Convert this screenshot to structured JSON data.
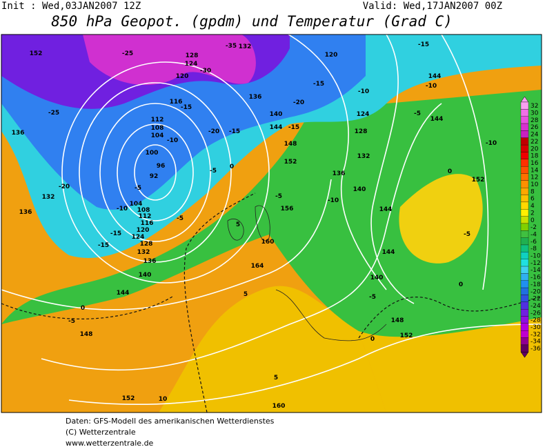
{
  "header": {
    "init": "Init : Wed,03JAN2007 12Z",
    "valid": "Valid: Wed,17JAN2007 00Z",
    "title": "850 hPa Geopot. (gpdm) und Temperatur (Grad C)"
  },
  "map": {
    "contour_labels": [
      "152",
      "-25",
      "128",
      "-30",
      "-35",
      "132",
      "120",
      "-15",
      "144",
      "-10",
      "124",
      "120",
      "-25",
      "136",
      "116",
      "-15",
      "112",
      "108",
      "104",
      "-10",
      "-20",
      "-15",
      "100",
      "96",
      "92",
      "-5",
      "-5",
      "0",
      "-20",
      "132",
      "136",
      "-10",
      "104",
      "108",
      "112",
      "116",
      "120",
      "124",
      "128",
      "132",
      "136",
      "-15",
      "-15",
      "-5",
      "5",
      "160",
      "164",
      "140",
      "144",
      "0",
      "-5",
      "148",
      "152",
      "10",
      "5",
      "160",
      "5",
      "136",
      "140",
      "-20",
      "144",
      "-15",
      "148",
      "152",
      "-15",
      "-10",
      "124",
      "128",
      "132",
      "136",
      "140",
      "-10",
      "-5",
      "156",
      "144",
      "144",
      "140",
      "-5",
      "148",
      "152",
      "0",
      "-5",
      "144",
      "-10",
      "0",
      "152",
      "-5",
      "0"
    ]
  },
  "colorbar": {
    "ticks": [
      32,
      30,
      28,
      26,
      24,
      22,
      20,
      18,
      16,
      14,
      12,
      10,
      8,
      6,
      4,
      2,
      0,
      -2,
      -4,
      -6,
      -8,
      -10,
      -12,
      -14,
      -16,
      -18,
      -20,
      -22,
      -24,
      -26,
      -28,
      -30,
      -32,
      -34,
      -36
    ],
    "colors": [
      "#f8a0f0",
      "#f070e8",
      "#e850e0",
      "#d830d0",
      "#c820c0",
      "#c00000",
      "#d80000",
      "#f00000",
      "#ff3000",
      "#ff5000",
      "#ff7000",
      "#ff9000",
      "#ffa800",
      "#ffc000",
      "#ffd800",
      "#fff000",
      "#c8e000",
      "#80d000",
      "#40c040",
      "#20b050",
      "#10c080",
      "#10d0c0",
      "#20e0e0",
      "#40d0f0",
      "#30b0f0",
      "#2090f0",
      "#2070e0",
      "#3050e0",
      "#5030e0",
      "#7020e0",
      "#9010e0",
      "#b000e0",
      "#c000d0",
      "#900090",
      "#600060"
    ]
  },
  "footer": {
    "lines": [
      "Daten: GFS-Modell des amerikanischen Wetterdienstes",
      "(C) Wetterzentrale",
      "www.wetterzentrale.de"
    ]
  }
}
